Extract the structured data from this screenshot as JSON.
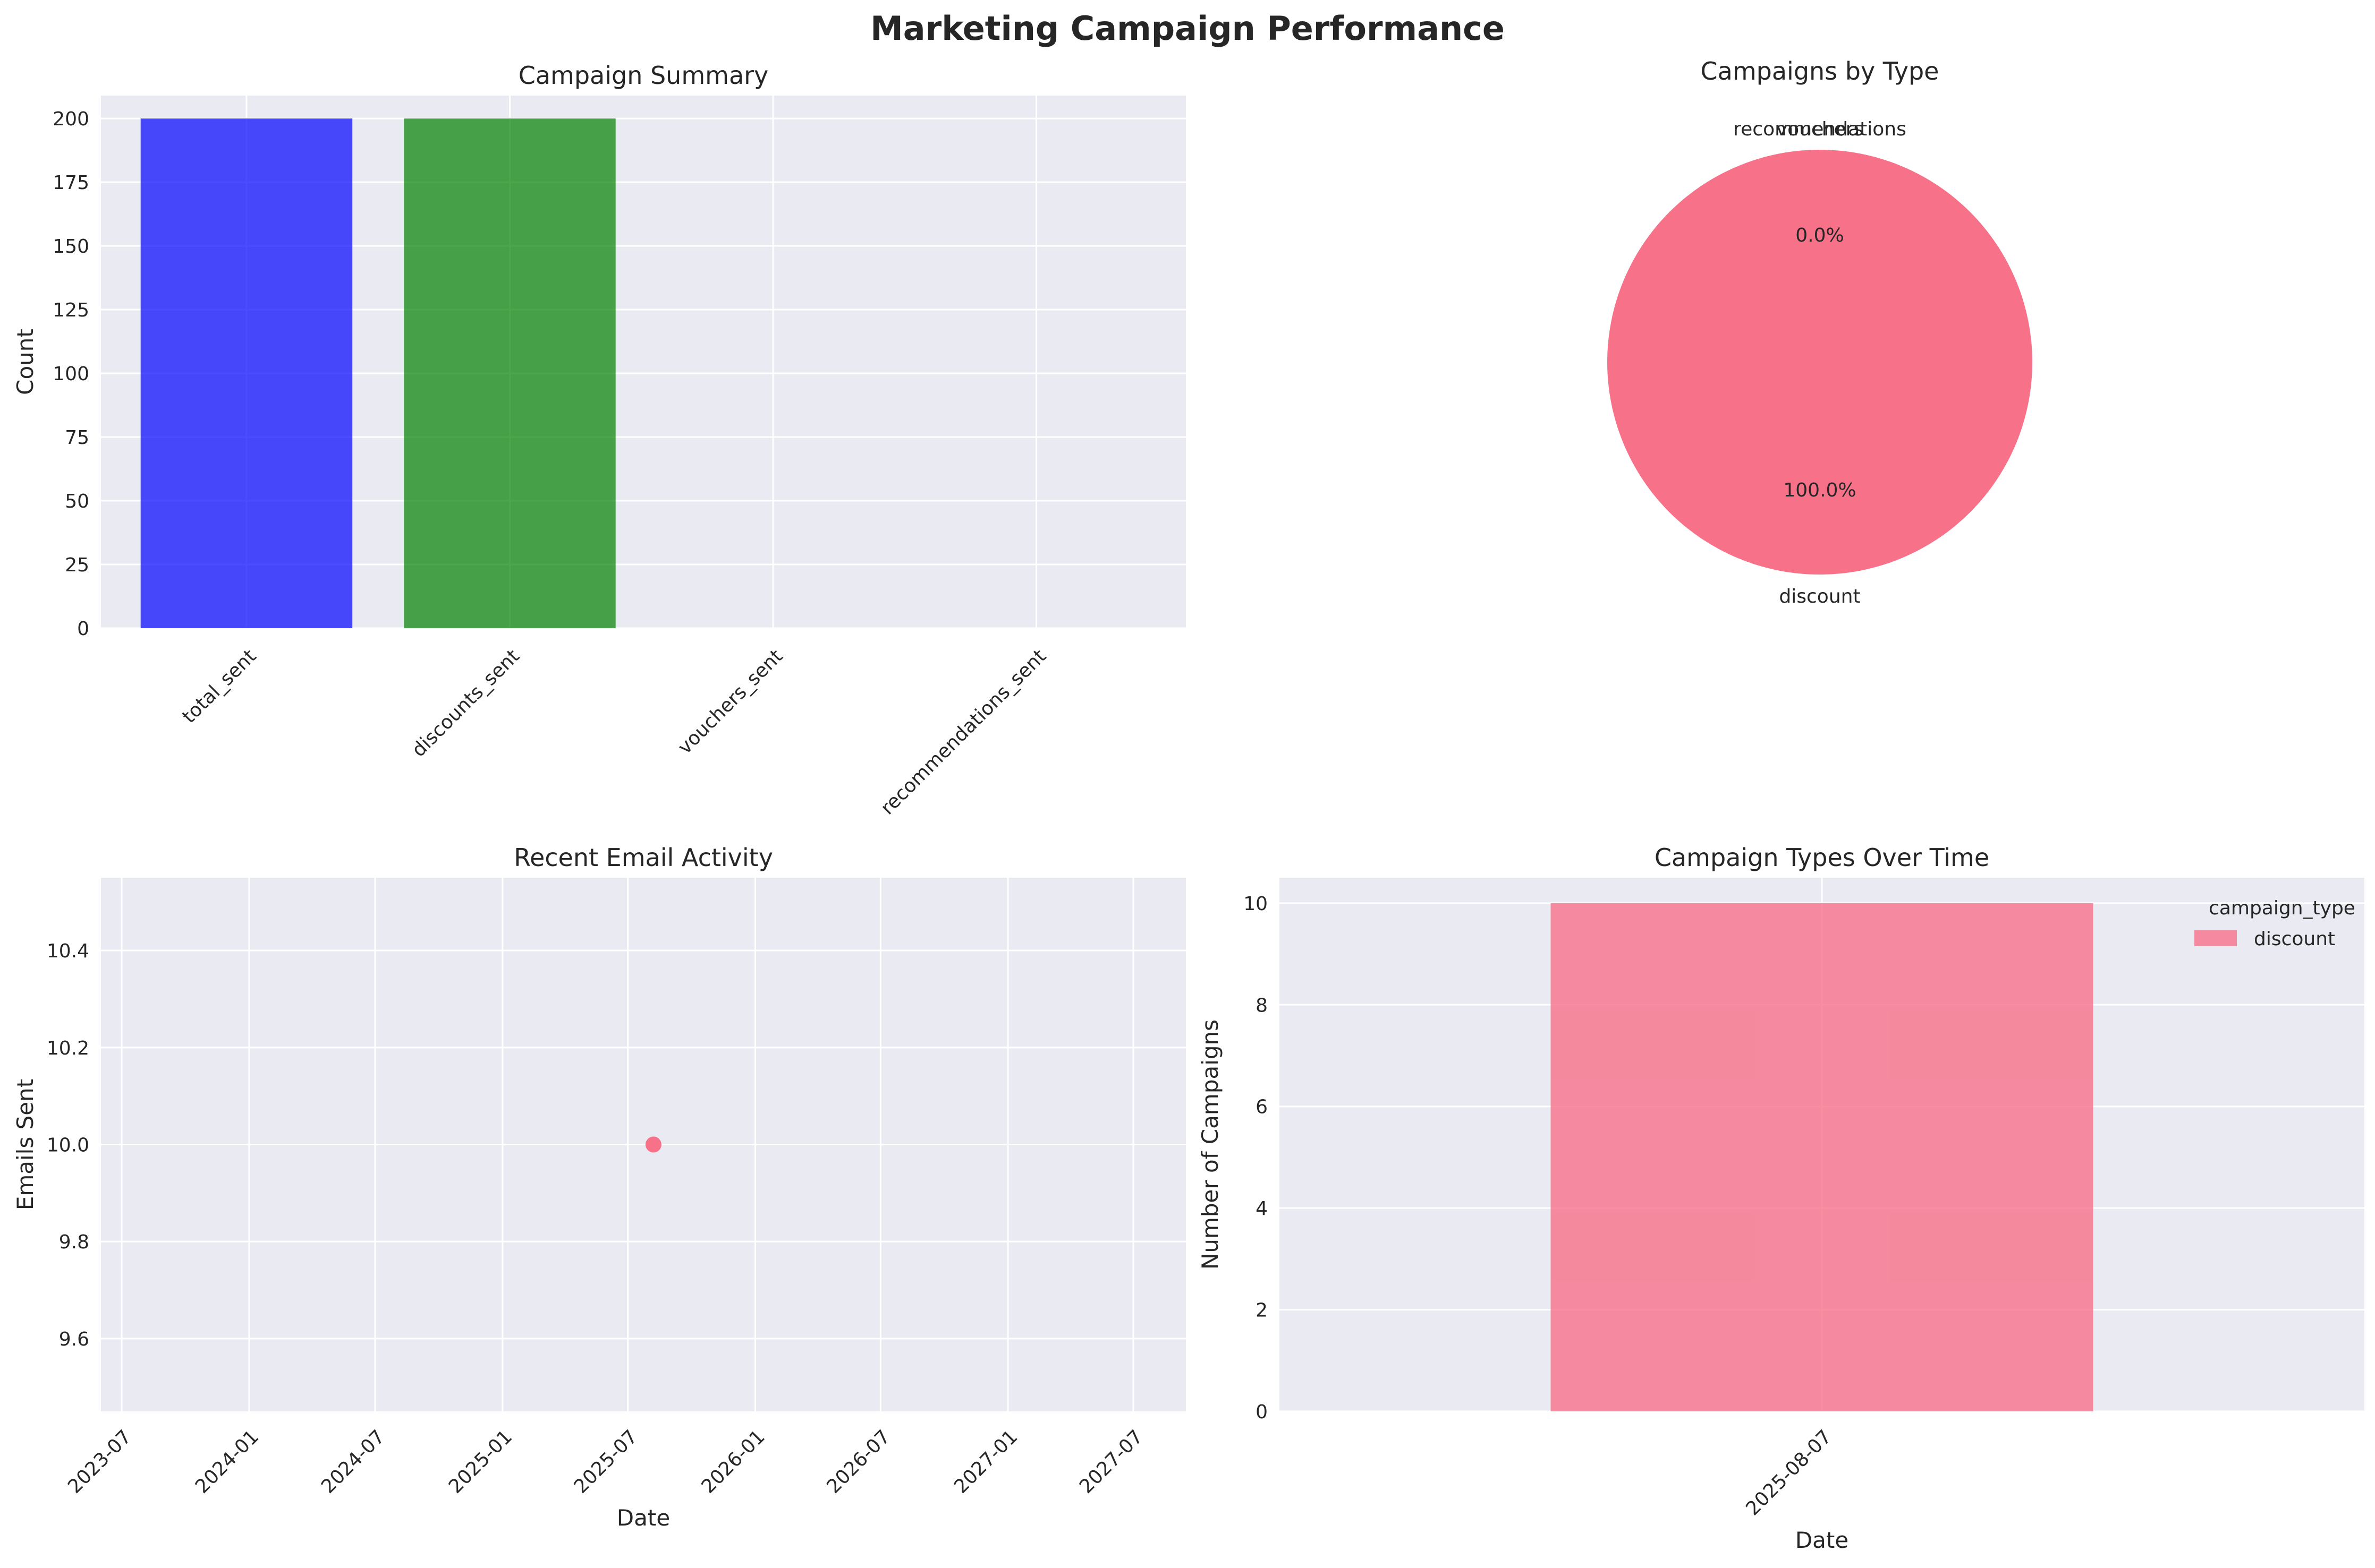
{
  "figure": {
    "title": "Marketing Campaign Performance"
  },
  "chart_data": [
    {
      "type": "bar",
      "title": "Campaign Summary",
      "xlabel": "",
      "ylabel": "Count",
      "categories": [
        "total_sent",
        "discounts_sent",
        "vouchers_sent",
        "recommendations_sent"
      ],
      "values": [
        200,
        200,
        0,
        0
      ],
      "colors": [
        "#0000ff",
        "#008000",
        "#ff0000",
        "#800080"
      ],
      "ylim": [
        0,
        209
      ],
      "yticks": [
        0,
        25,
        50,
        75,
        100,
        125,
        150,
        175,
        200
      ],
      "grid": true
    },
    {
      "type": "pie",
      "title": "Campaigns by Type",
      "labels": [
        "discount",
        "vouchers",
        "recommendations"
      ],
      "values": [
        10,
        0,
        0
      ],
      "percent_labels": [
        "100.0%",
        "0.0%",
        "0.0%"
      ],
      "colors": [
        "#f77189",
        "#bb9832",
        "#50b131"
      ]
    },
    {
      "type": "scatter",
      "title": "Recent Email Activity",
      "xlabel": "Date",
      "ylabel": "Emails Sent",
      "x": [
        "2025-08-07"
      ],
      "y": [
        10.0
      ],
      "xlim": [
        "2023-06-01",
        "2027-09-15"
      ],
      "xticks": [
        "2023-07",
        "2024-01",
        "2024-07",
        "2025-01",
        "2025-07",
        "2026-01",
        "2026-07",
        "2027-01",
        "2027-07"
      ],
      "ylim": [
        9.45,
        10.55
      ],
      "yticks": [
        9.6,
        9.8,
        10.0,
        10.2,
        10.4
      ],
      "color": "#f77189",
      "grid": true
    },
    {
      "type": "bar",
      "title": "Campaign Types Over Time",
      "xlabel": "Date",
      "ylabel": "Number of Campaigns",
      "categories": [
        "2025-08-07"
      ],
      "series": [
        {
          "name": "discount",
          "values": [
            10
          ]
        }
      ],
      "ylim": [
        0,
        10.5
      ],
      "yticks": [
        0,
        2,
        4,
        6,
        8,
        10
      ],
      "legend": {
        "title": "campaign_type",
        "placement": "upper right"
      },
      "color": "#f77189",
      "grid": true
    }
  ]
}
